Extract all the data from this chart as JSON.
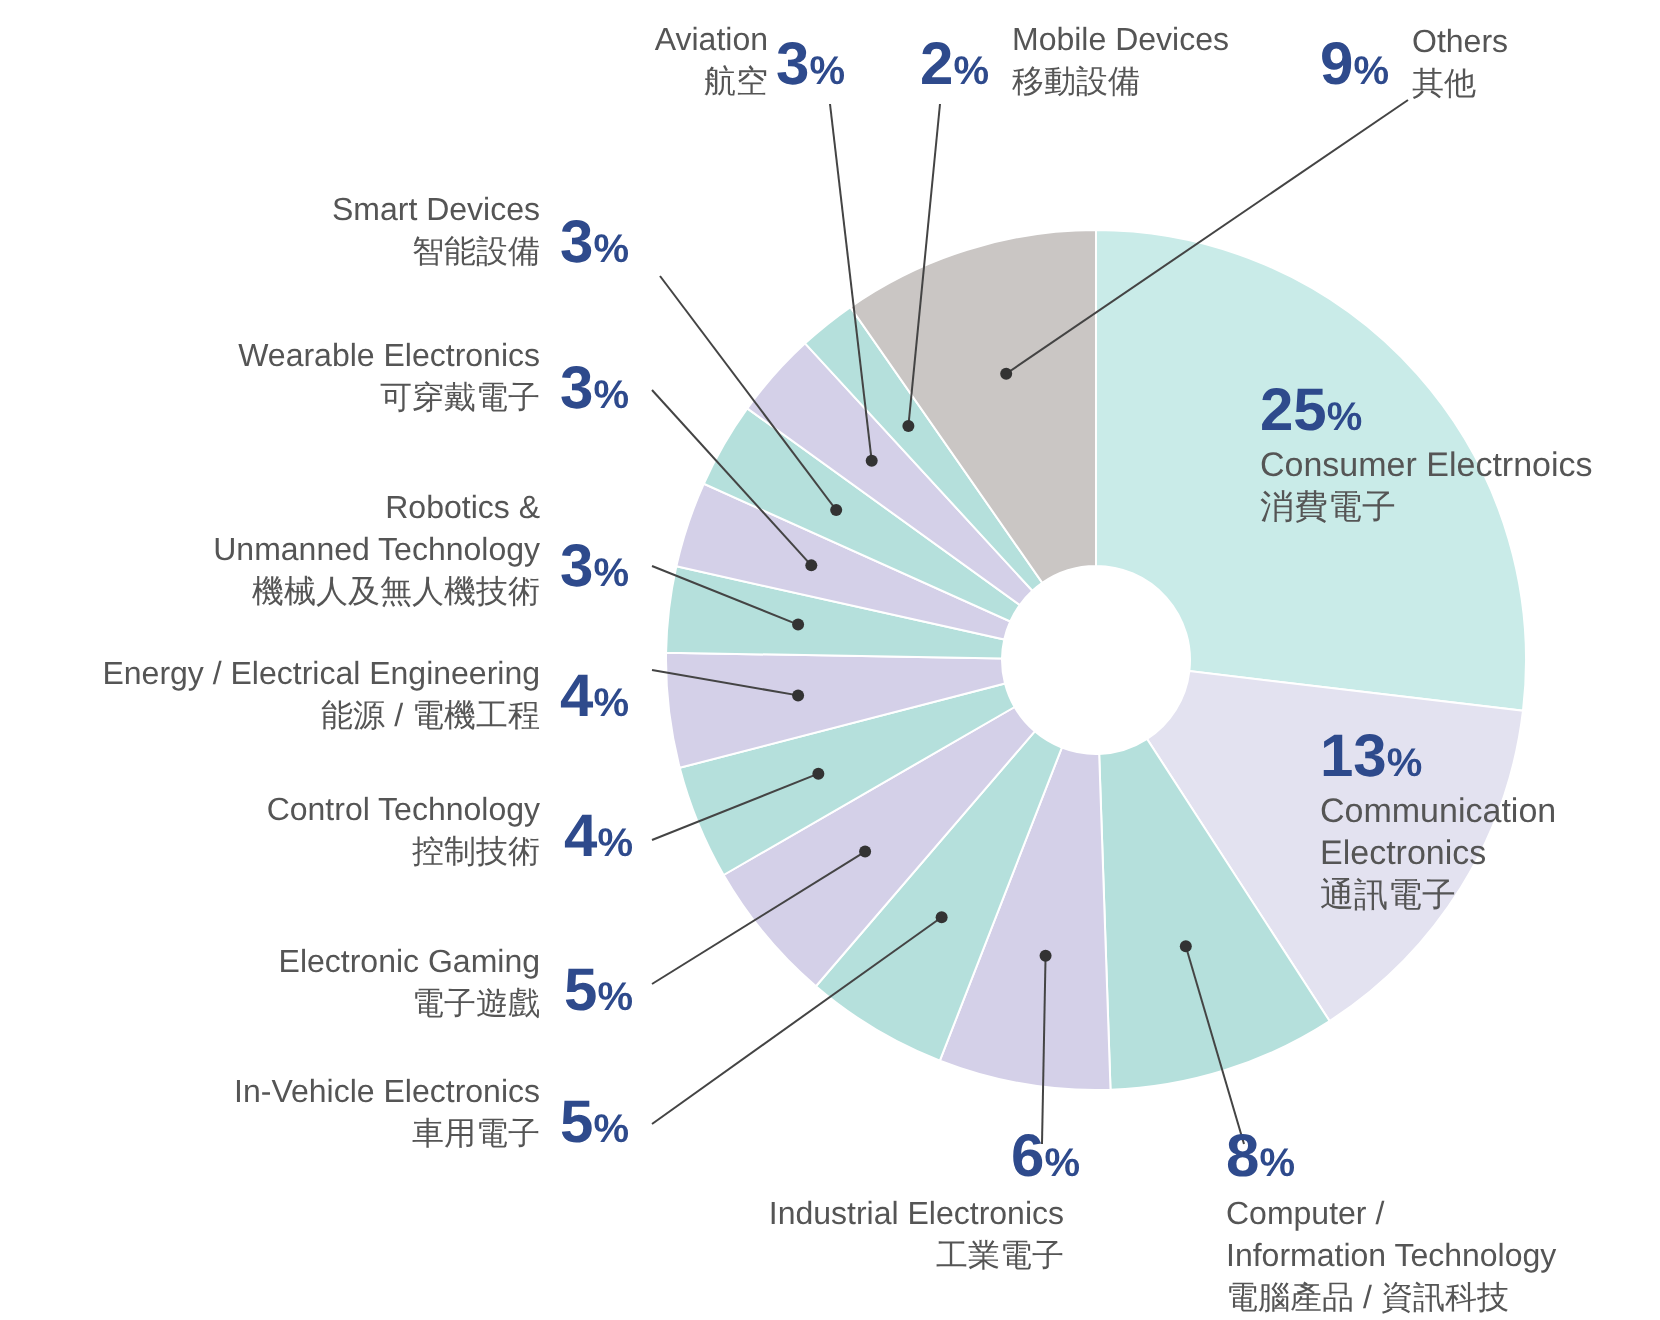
{
  "chart_data": {
    "type": "donut",
    "categories": [
      "Consumer Electrnoics\n消費電子",
      "Communication\nElectronics\n通訊電子",
      "Computer /\nInformation Technology\n電腦產品 / 資訊科技",
      "Industrial Electronics\n工業電子",
      "In-Vehicle Electronics\n車用電子",
      "Electronic Gaming\n電子遊戲",
      "Control Technology\n控制技術",
      "Energy / Electrical Engineering\n能源 / 電機工程",
      "Robotics &\nUnmanned Technology\n機械人及無人機技術",
      "Wearable Electronics\n可穿戴電子",
      "Smart Devices\n智能設備",
      "Aviation\n航空",
      "Mobile Devices\n移動設備",
      "Others\n其他"
    ],
    "values": [
      25,
      13,
      8,
      6,
      5,
      5,
      4,
      4,
      3,
      3,
      3,
      3,
      2,
      9
    ],
    "colors": [
      "#c9ebe8",
      "#e3e2f0",
      "#b5e0dc",
      "#d4d0e8",
      "#b5e0dc",
      "#d4d0e8",
      "#b5e0dc",
      "#d4d0e8",
      "#b5e0dc",
      "#d4d0e8",
      "#b5e0dc",
      "#d4d0e8",
      "#b5e0dc",
      "#cac6c4"
    ],
    "value_labels": [
      "25%",
      "13%",
      "8%",
      "6%",
      "5%",
      "5%",
      "4%",
      "4%",
      "3%",
      "3%",
      "3%",
      "3%",
      "2%",
      "9%"
    ]
  }
}
